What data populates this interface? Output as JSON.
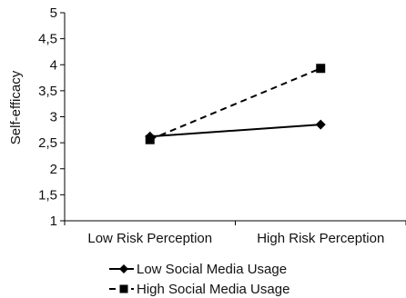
{
  "chart_data": {
    "type": "line",
    "title": "",
    "xlabel": "",
    "ylabel": "Self-efficacy",
    "categories": [
      "Low Risk Perception",
      "High Risk Perception"
    ],
    "ylim": [
      1,
      5
    ],
    "yticks": [
      "1",
      "1,5",
      "2",
      "2,5",
      "3",
      "3,5",
      "4",
      "4,5",
      "5"
    ],
    "ytick_values": [
      1,
      1.5,
      2,
      2.5,
      3,
      3.5,
      4,
      4.5,
      5
    ],
    "grid": false,
    "legend_position": "bottom",
    "series": [
      {
        "name": "Low Social Media Usage",
        "values": [
          2.62,
          2.85
        ],
        "marker": "diamond",
        "line_style": "solid",
        "color": "#000000"
      },
      {
        "name": "High Social Media Usage",
        "values": [
          2.56,
          3.93
        ],
        "marker": "square",
        "line_style": "dashed",
        "color": "#000000"
      }
    ]
  }
}
